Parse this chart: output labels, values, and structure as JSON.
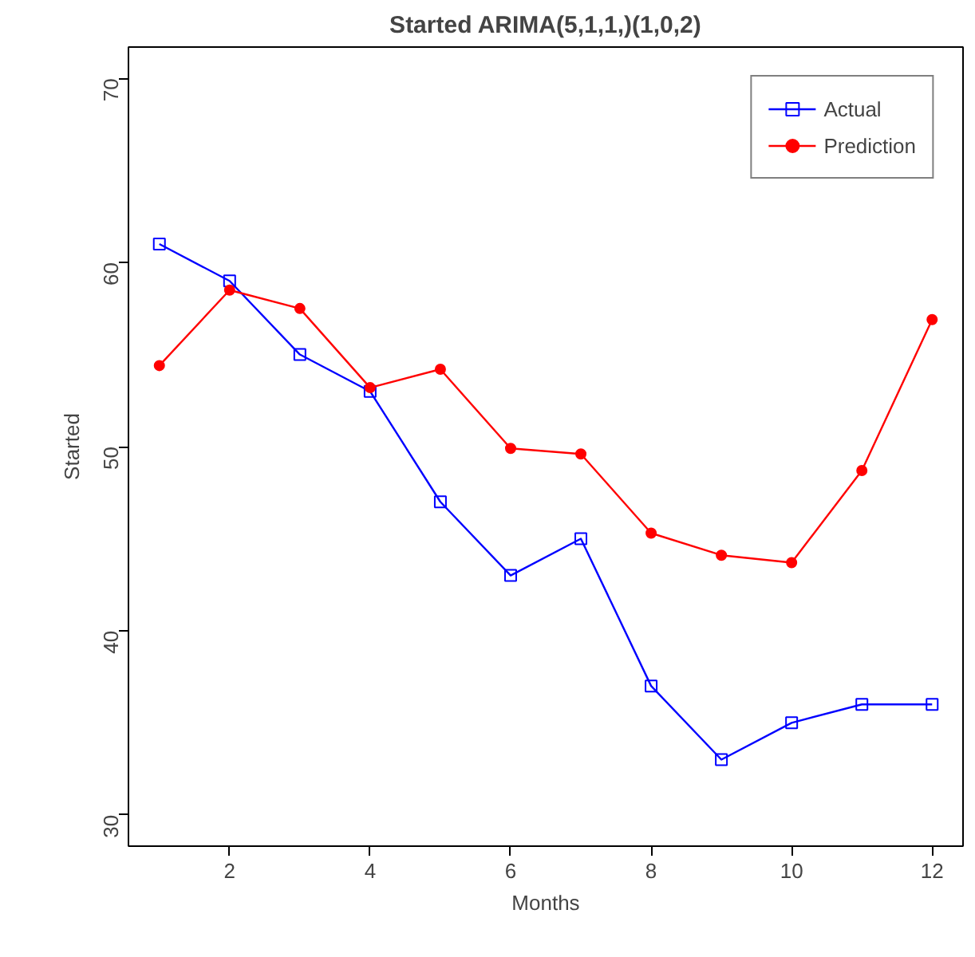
{
  "chart_data": {
    "type": "line",
    "title": "Started ARIMA(5,1,1,)(1,0,2)",
    "xlabel": "Months",
    "ylabel": "Started",
    "x": [
      1,
      2,
      3,
      4,
      5,
      6,
      7,
      8,
      9,
      10,
      11,
      12
    ],
    "series": [
      {
        "name": "Actual",
        "color": "#0000ff",
        "marker": "square",
        "values": [
          61,
          59,
          55,
          53,
          47,
          43,
          45,
          37,
          33,
          35,
          36,
          36
        ]
      },
      {
        "name": "Prediction",
        "color": "#ff0000",
        "marker": "circle",
        "values": [
          54.4,
          58.5,
          57.5,
          53.2,
          54.2,
          49.9,
          49.6,
          45.3,
          44.1,
          43.7,
          48.7,
          56.9
        ]
      }
    ],
    "xlim": [
      0.56,
      12.44
    ],
    "ylim": [
      28.3,
      71.7
    ],
    "xticks": [
      2,
      4,
      6,
      8,
      10,
      12
    ],
    "yticks": [
      30,
      40,
      50,
      60,
      70
    ],
    "grid": false,
    "legend": "top right",
    "line_style": "solid"
  }
}
